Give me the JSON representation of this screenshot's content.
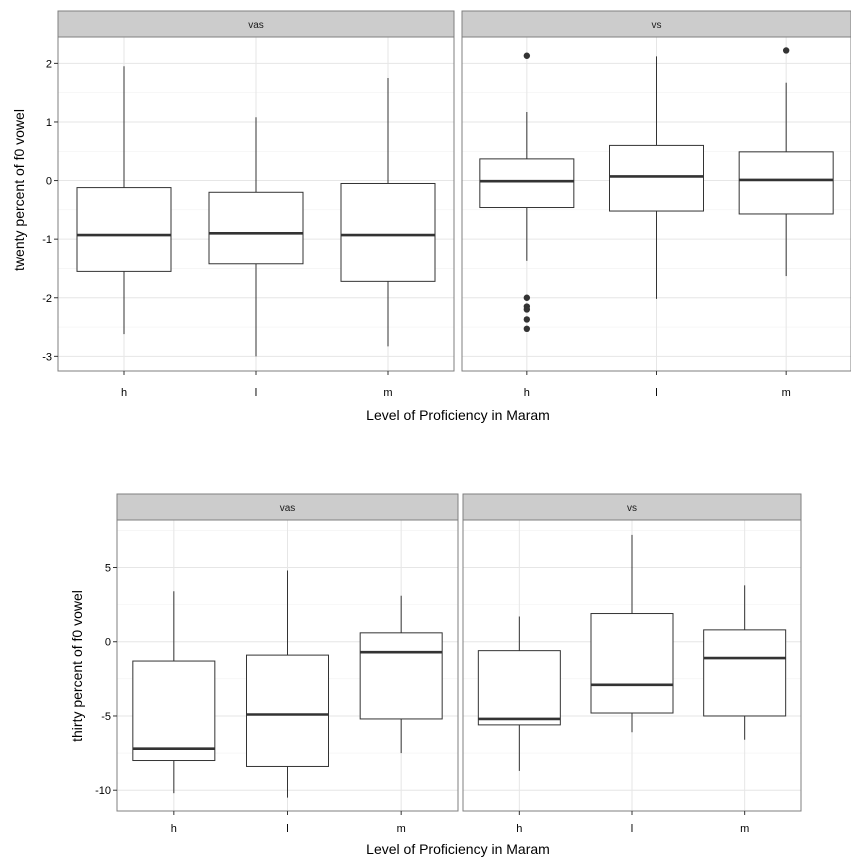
{
  "chart_data": [
    {
      "type": "box",
      "xlabel": "Level of Proficiency in Maram",
      "ylabel": "twenty percent of f0 vowel",
      "ylim": [
        -3.25,
        2.45
      ],
      "yticks": [
        -3,
        -2,
        -1,
        0,
        1,
        2
      ],
      "ytick_labels": [
        "-3",
        "-2",
        "-1",
        "0",
        "1",
        "2"
      ],
      "categories": [
        "h",
        "l",
        "m"
      ],
      "grid": true,
      "facets": [
        {
          "label": "vas",
          "boxes": [
            {
              "x": "h",
              "min": -2.62,
              "q1": -1.55,
              "median": -0.93,
              "q3": -0.12,
              "max": 1.95,
              "outliers": []
            },
            {
              "x": "l",
              "min": -3.0,
              "q1": -1.42,
              "median": -0.9,
              "q3": -0.2,
              "max": 1.08,
              "outliers": []
            },
            {
              "x": "m",
              "min": -2.83,
              "q1": -1.72,
              "median": -0.93,
              "q3": -0.05,
              "max": 1.75,
              "outliers": []
            }
          ]
        },
        {
          "label": "vs",
          "boxes": [
            {
              "x": "h",
              "min": -1.37,
              "q1": -0.46,
              "median": -0.01,
              "q3": 0.37,
              "max": 1.17,
              "outliers": [
                2.13,
                -2.0,
                -2.15,
                -2.2,
                -2.37,
                -2.53
              ]
            },
            {
              "x": "l",
              "min": -2.02,
              "q1": -0.52,
              "median": 0.07,
              "q3": 0.6,
              "max": 2.12,
              "outliers": []
            },
            {
              "x": "m",
              "min": -1.63,
              "q1": -0.57,
              "median": 0.01,
              "q3": 0.49,
              "max": 1.67,
              "outliers": [
                2.22
              ]
            }
          ]
        }
      ]
    },
    {
      "type": "box",
      "xlabel": "Level of Proficiency in Maram",
      "ylabel": "thirty percent of f0 vowel",
      "ylim": [
        -11.4,
        8.2
      ],
      "yticks": [
        -10,
        -5,
        0,
        5
      ],
      "ytick_labels": [
        "-10",
        "-5",
        "0",
        "5"
      ],
      "categories": [
        "h",
        "l",
        "m"
      ],
      "grid": true,
      "facets": [
        {
          "label": "vas",
          "boxes": [
            {
              "x": "h",
              "min": -10.2,
              "q1": -8.0,
              "median": -7.2,
              "q3": -1.3,
              "max": 3.4,
              "outliers": []
            },
            {
              "x": "l",
              "min": -10.5,
              "q1": -8.4,
              "median": -4.9,
              "q3": -0.9,
              "max": 4.8,
              "outliers": []
            },
            {
              "x": "m",
              "min": -7.5,
              "q1": -5.2,
              "median": -0.7,
              "q3": 0.6,
              "max": 3.1,
              "outliers": []
            }
          ]
        },
        {
          "label": "vs",
          "boxes": [
            {
              "x": "h",
              "min": -8.7,
              "q1": -5.6,
              "median": -5.2,
              "q3": -0.6,
              "max": 1.7,
              "outliers": []
            },
            {
              "x": "l",
              "min": -6.1,
              "q1": -4.8,
              "median": -2.9,
              "q3": 1.9,
              "max": 7.2,
              "outliers": []
            },
            {
              "x": "m",
              "min": -6.6,
              "q1": -5.0,
              "median": -1.1,
              "q3": 0.8,
              "max": 3.8,
              "outliers": []
            }
          ]
        }
      ]
    }
  ]
}
